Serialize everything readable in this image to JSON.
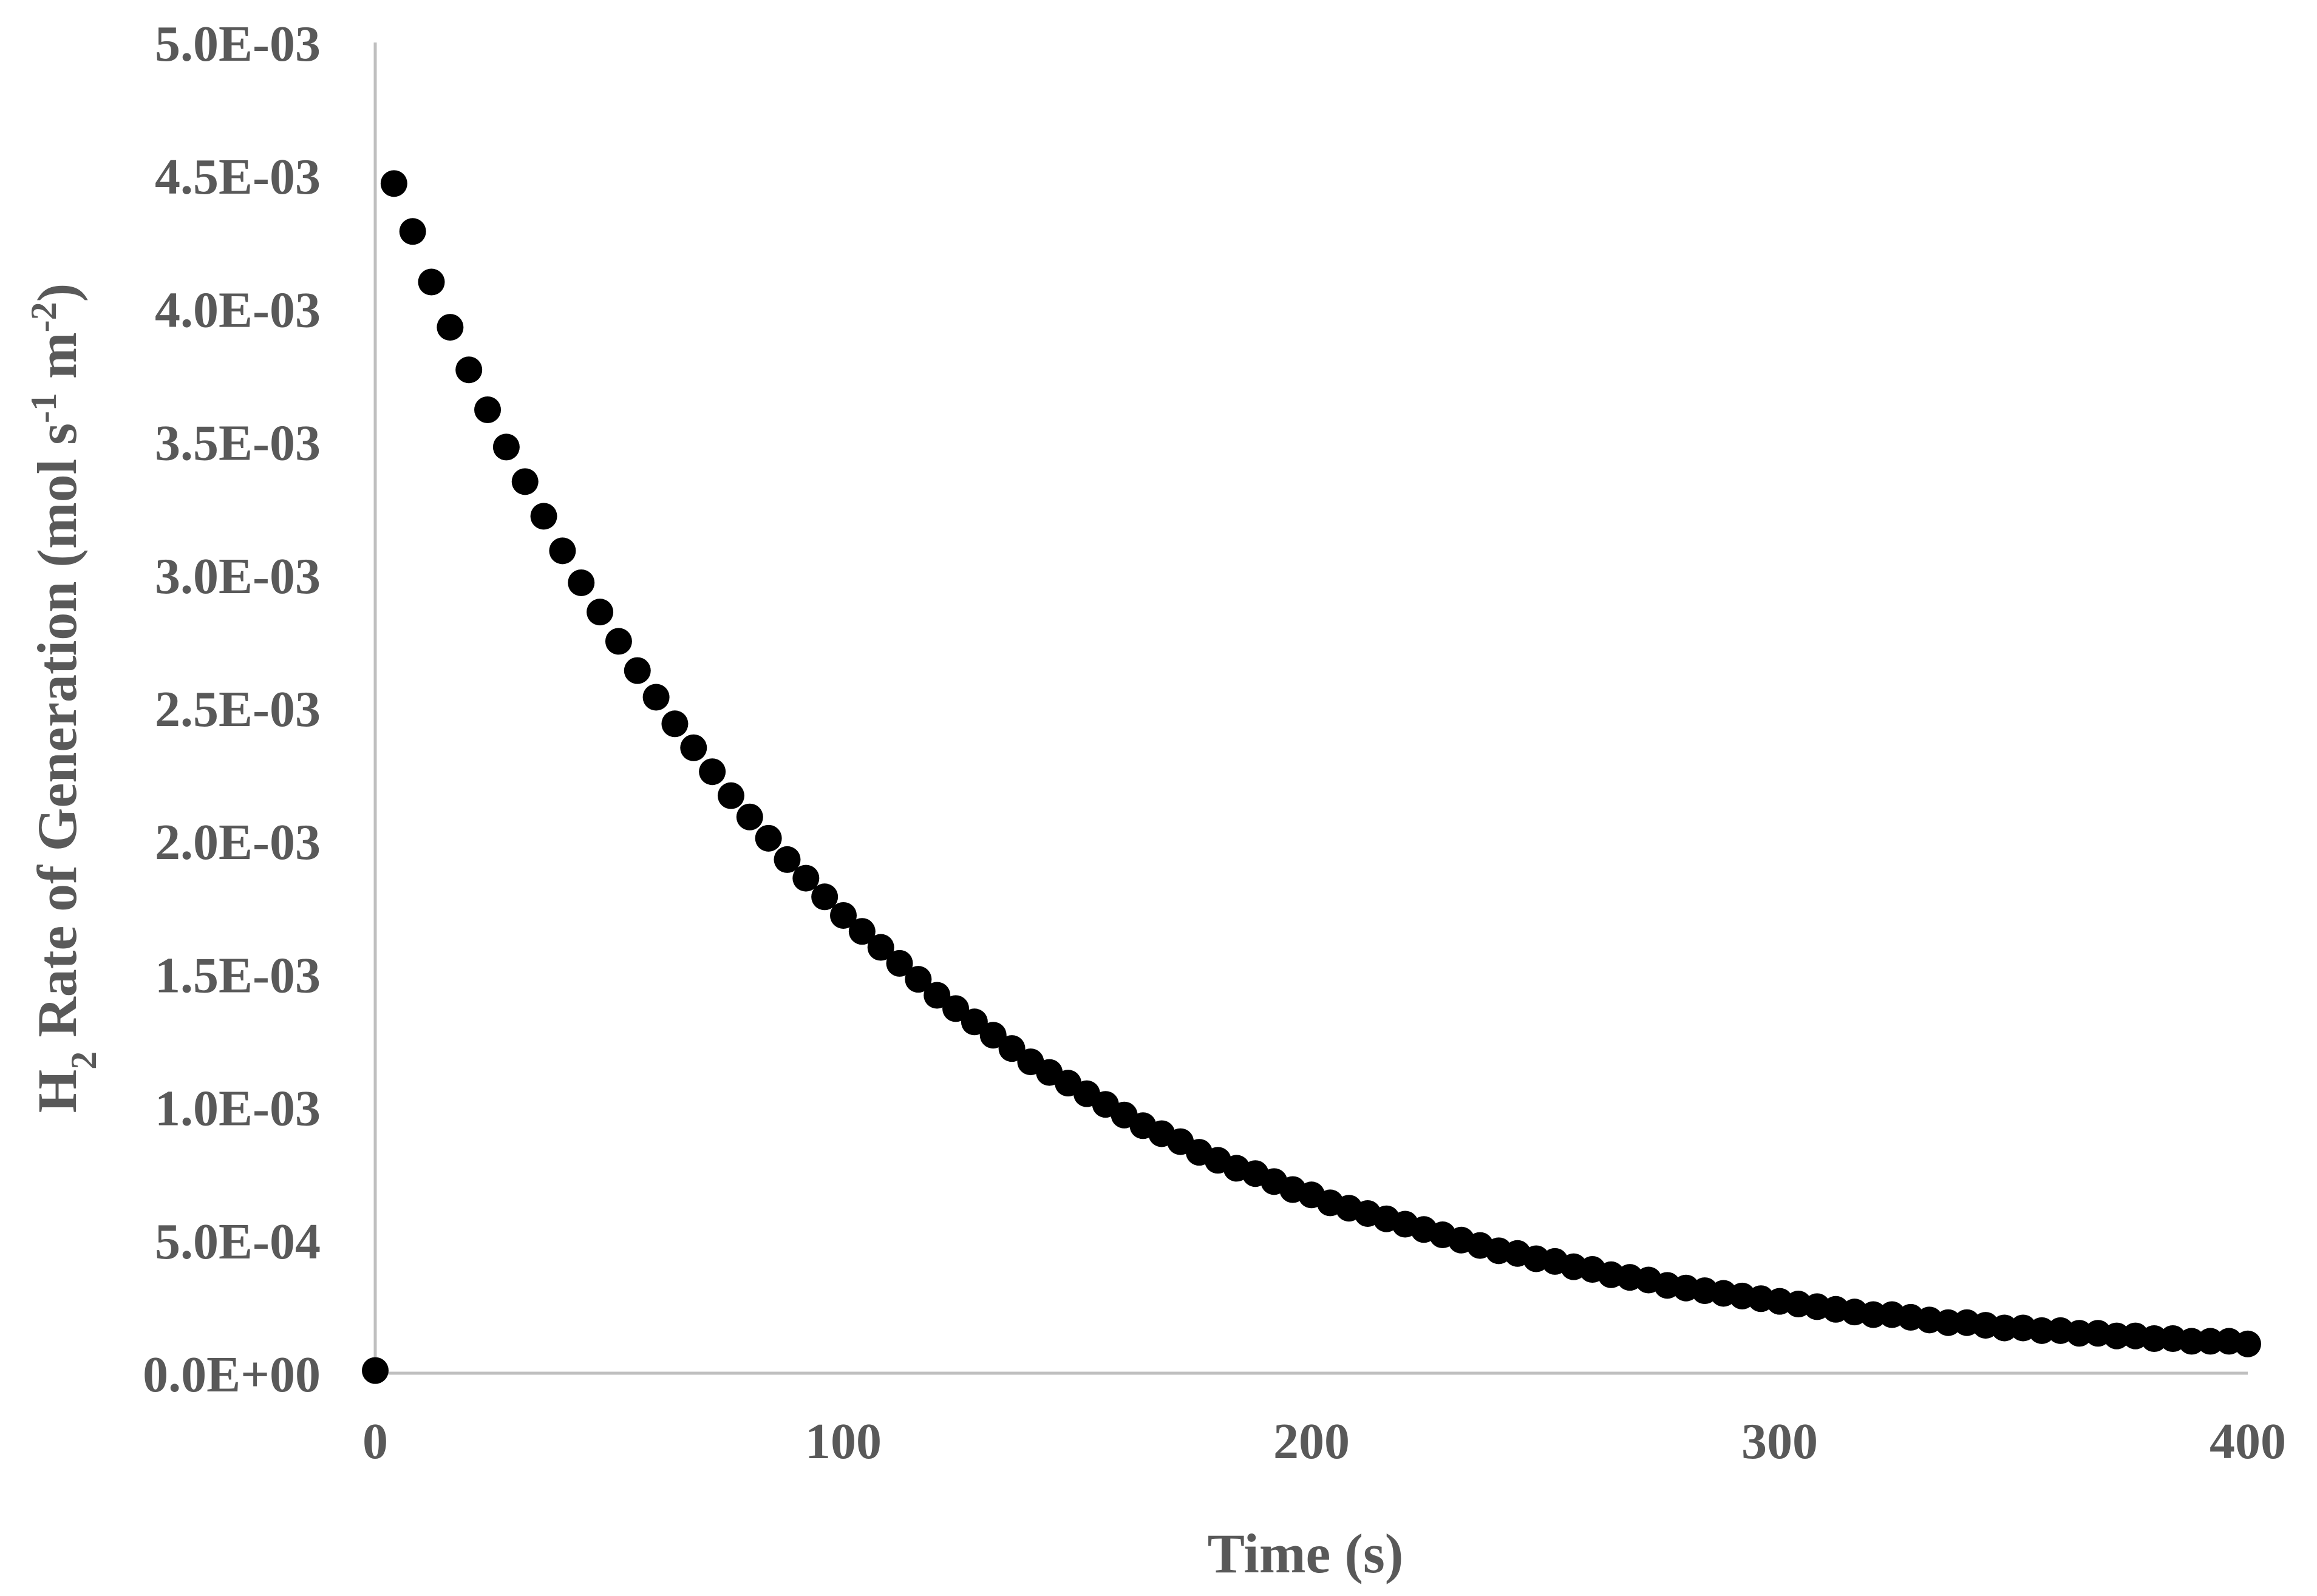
{
  "chart_data": {
    "type": "scatter",
    "xlabel": "Time (s)",
    "ylabel": {
      "prefix": "H",
      "prefix_sub": "2",
      "main": " Rate of Generation (mol s",
      "sup1": "-1",
      "mid": " m",
      "sup2": "-2",
      "suffix": ")"
    },
    "xlim": [
      0,
      400
    ],
    "ylim": [
      0,
      0.005
    ],
    "x_ticks": [
      0,
      100,
      200,
      300,
      400
    ],
    "x_tick_labels": [
      "0",
      "100",
      "200",
      "300",
      "400"
    ],
    "y_ticks": [
      0,
      0.0005,
      0.001,
      0.0015,
      0.002,
      0.0025,
      0.003,
      0.0035,
      0.004,
      0.0045,
      0.005
    ],
    "y_tick_labels": [
      "0.0E+00",
      "5.0E-04",
      "1.0E-03",
      "1.5E-03",
      "2.0E-03",
      "2.5E-03",
      "3.0E-03",
      "3.5E-03",
      "4.0E-03",
      "4.5E-03",
      "5.0E-03"
    ],
    "grid": false,
    "marker_color": "#000000",
    "axis_color": "#bfbfbf",
    "text_color": "#595959",
    "series": [
      {
        "points": [
          [
            0,
            1e-05
          ],
          [
            4,
            0.00447
          ],
          [
            8,
            0.00429
          ],
          [
            12,
            0.0041
          ],
          [
            16,
            0.00393
          ],
          [
            20,
            0.00377
          ],
          [
            24,
            0.00362
          ],
          [
            28,
            0.00348
          ],
          [
            32,
            0.00335
          ],
          [
            36,
            0.00322
          ],
          [
            40,
            0.00309
          ],
          [
            44,
            0.00297
          ],
          [
            48,
            0.00286
          ],
          [
            52,
            0.00275
          ],
          [
            56,
            0.00264
          ],
          [
            60,
            0.00254
          ],
          [
            64,
            0.00244
          ],
          [
            68,
            0.00235
          ],
          [
            72,
            0.00226
          ],
          [
            76,
            0.00217
          ],
          [
            80,
            0.00209
          ],
          [
            84,
            0.00201
          ],
          [
            88,
            0.00193
          ],
          [
            92,
            0.00186
          ],
          [
            96,
            0.00179
          ],
          [
            100,
            0.00172
          ],
          [
            104,
            0.00166
          ],
          [
            108,
            0.0016
          ],
          [
            112,
            0.00154
          ],
          [
            116,
            0.00148
          ],
          [
            120,
            0.00142
          ],
          [
            124,
            0.00137
          ],
          [
            128,
            0.00132
          ],
          [
            132,
            0.00127
          ],
          [
            136,
            0.00122
          ],
          [
            140,
            0.00117
          ],
          [
            144,
            0.00113
          ],
          [
            148,
            0.00109
          ],
          [
            152,
            0.00105
          ],
          [
            156,
            0.00101
          ],
          [
            160,
            0.00097
          ],
          [
            164,
            0.00093
          ],
          [
            168,
            0.0009
          ],
          [
            172,
            0.00087
          ],
          [
            176,
            0.00083
          ],
          [
            180,
            0.0008
          ],
          [
            184,
            0.00077
          ],
          [
            188,
            0.00075
          ],
          [
            192,
            0.00072
          ],
          [
            196,
            0.00069
          ],
          [
            200,
            0.00067
          ],
          [
            204,
            0.00064
          ],
          [
            208,
            0.00062
          ],
          [
            212,
            0.0006
          ],
          [
            216,
            0.00058
          ],
          [
            220,
            0.00056
          ],
          [
            224,
            0.00054
          ],
          [
            228,
            0.00052
          ],
          [
            232,
            0.0005
          ],
          [
            236,
            0.00048
          ],
          [
            240,
            0.00046
          ],
          [
            244,
            0.00045
          ],
          [
            248,
            0.00043
          ],
          [
            252,
            0.00042
          ],
          [
            256,
            0.0004
          ],
          [
            260,
            0.00039
          ],
          [
            264,
            0.00037
          ],
          [
            268,
            0.00036
          ],
          [
            272,
            0.00035
          ],
          [
            276,
            0.00033
          ],
          [
            280,
            0.00032
          ],
          [
            284,
            0.00031
          ],
          [
            288,
            0.0003
          ],
          [
            292,
            0.00029
          ],
          [
            296,
            0.00028
          ],
          [
            300,
            0.00027
          ],
          [
            304,
            0.00026
          ],
          [
            308,
            0.00025
          ],
          [
            312,
            0.00024
          ],
          [
            316,
            0.00023
          ],
          [
            320,
            0.00022
          ],
          [
            324,
            0.00022
          ],
          [
            328,
            0.00021
          ],
          [
            332,
            0.0002
          ],
          [
            336,
            0.00019
          ],
          [
            340,
            0.00019
          ],
          [
            344,
            0.00018
          ],
          [
            348,
            0.00017
          ],
          [
            352,
            0.00017
          ],
          [
            356,
            0.00016
          ],
          [
            360,
            0.00016
          ],
          [
            364,
            0.00015
          ],
          [
            368,
            0.00015
          ],
          [
            372,
            0.00014
          ],
          [
            376,
            0.00014
          ],
          [
            380,
            0.00013
          ],
          [
            384,
            0.00013
          ],
          [
            388,
            0.00012
          ],
          [
            392,
            0.00012
          ],
          [
            396,
            0.00012
          ],
          [
            400,
            0.00011
          ]
        ]
      }
    ]
  }
}
